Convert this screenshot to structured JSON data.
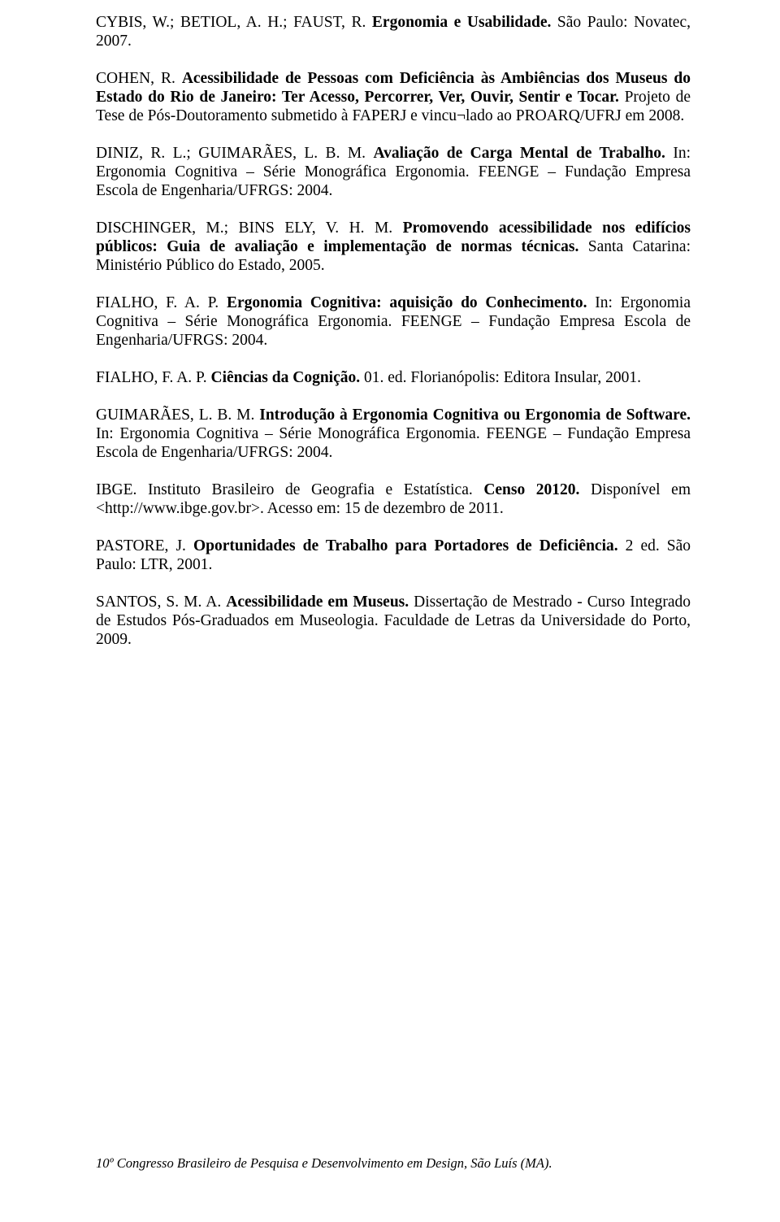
{
  "refs": [
    {
      "segments": [
        {
          "t": "CYBIS, W.; BETIOL, A. H.; FAUST, R. ",
          "b": false
        },
        {
          "t": "Ergonomia e Usabilidade. ",
          "b": true
        },
        {
          "t": "São Paulo: Novatec, 2007.",
          "b": false
        }
      ]
    },
    {
      "segments": [
        {
          "t": "COHEN, R. ",
          "b": false
        },
        {
          "t": "Acessibilidade de Pessoas com Deficiência às Ambiências dos Museus do Estado do Rio de Janeiro: Ter Acesso, Percorrer, Ver, Ouvir, Sentir e Tocar. ",
          "b": true
        },
        {
          "t": "Projeto de Tese de Pós-Doutoramento submetido à FAPERJ e vincu¬lado ao PROARQ/UFRJ em 2008.",
          "b": false
        }
      ]
    },
    {
      "segments": [
        {
          "t": "DINIZ, R. L.; GUIMARÃES, L. B. M. ",
          "b": false
        },
        {
          "t": "Avaliação de Carga Mental de Trabalho. ",
          "b": true
        },
        {
          "t": "In: Ergonomia Cognitiva – Série Monográfica Ergonomia. FEENGE – Fundação Empresa Escola de Engenharia/UFRGS: 2004.",
          "b": false
        }
      ]
    },
    {
      "segments": [
        {
          "t": "DISCHINGER, M.; BINS ELY, V. H. M. ",
          "b": false
        },
        {
          "t": "Promovendo acessibilidade nos edifícios públicos: Guia de avaliação e implementação de normas técnicas. ",
          "b": true
        },
        {
          "t": "Santa Catarina: Ministério Público do Estado, 2005.",
          "b": false
        }
      ]
    },
    {
      "segments": [
        {
          "t": "FIALHO, F. A. P. ",
          "b": false
        },
        {
          "t": "Ergonomia Cognitiva: aquisição do Conhecimento. ",
          "b": true
        },
        {
          "t": "In: Ergonomia Cognitiva – Série Monográfica Ergonomia. FEENGE – Fundação Empresa Escola de Engenharia/UFRGS: 2004.",
          "b": false
        }
      ]
    },
    {
      "segments": [
        {
          "t": "FIALHO, F. A. P. ",
          "b": false
        },
        {
          "t": "Ciências da Cognição. ",
          "b": true
        },
        {
          "t": "01. ed. Florianópolis: Editora Insular, 2001.",
          "b": false
        }
      ]
    },
    {
      "segments": [
        {
          "t": "GUIMARÃES, L. B. M. ",
          "b": false
        },
        {
          "t": "Introdução à Ergonomia Cognitiva ou Ergonomia de Software. ",
          "b": true
        },
        {
          "t": "In: Ergonomia Cognitiva – Série Monográfica Ergonomia. FEENGE – Fundação Empresa Escola de Engenharia/UFRGS: 2004.",
          "b": false
        }
      ]
    },
    {
      "segments": [
        {
          "t": "IBGE. Instituto Brasileiro de Geografia e Estatística. ",
          "b": false
        },
        {
          "t": "Censo 20120. ",
          "b": true
        },
        {
          "t": "Disponível em <http://www.ibge.gov.br>. Acesso em: 15 de dezembro de 2011.",
          "b": false
        }
      ]
    },
    {
      "segments": [
        {
          "t": "PASTORE, J. ",
          "b": false
        },
        {
          "t": "Oportunidades de Trabalho para Portadores de Deficiência. ",
          "b": true
        },
        {
          "t": "2 ed. São Paulo: LTR, 2001.",
          "b": false
        }
      ]
    },
    {
      "segments": [
        {
          "t": "SANTOS, S. M. A. ",
          "b": false
        },
        {
          "t": "Acessibilidade em Museus. ",
          "b": true
        },
        {
          "t": "Dissertação de Mestrado - Curso Integrado de Estudos Pós-Graduados em Museologia. Faculdade de Letras da Universidade do Porto, 2009.",
          "b": false
        }
      ]
    }
  ],
  "footer": "10º Congresso Brasileiro de Pesquisa e Desenvolvimento em Design, São Luís (MA)."
}
